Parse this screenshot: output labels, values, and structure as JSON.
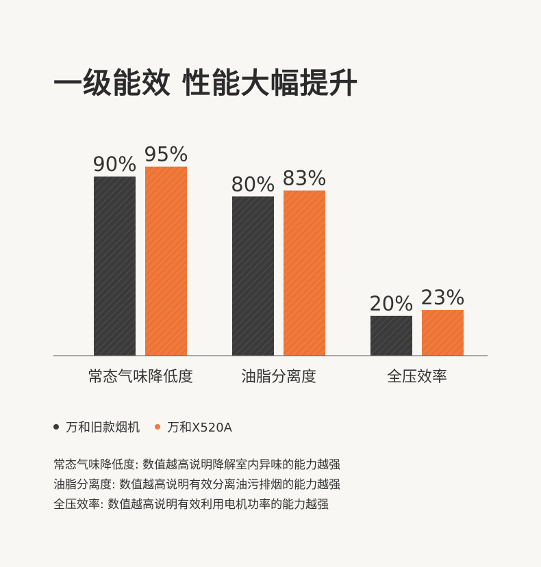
{
  "title": "一级能效 性能大幅提升",
  "colors": {
    "old": "#3a3a3a",
    "new": "#ef7a3c",
    "background": "#f8f7f4",
    "axis": "#555555"
  },
  "chart_data": {
    "type": "bar",
    "categories": [
      "常态气味降低度",
      "油脂分离度",
      "全压效率"
    ],
    "series": [
      {
        "name": "万和旧款烟机",
        "values": [
          90,
          80,
          20
        ],
        "labels": [
          "90%",
          "80%",
          "20%"
        ]
      },
      {
        "name": "万和X520A",
        "values": [
          95,
          83,
          23
        ],
        "labels": [
          "95%",
          "83%",
          "23%"
        ]
      }
    ],
    "ylim": [
      0,
      110
    ],
    "grid": false,
    "legend_position": "bottom-left"
  },
  "legend": [
    {
      "label": "万和旧款烟机"
    },
    {
      "label": "万和X520A"
    }
  ],
  "notes": [
    "常态气味降低度: 数值越高说明降解室内异味的能力越强",
    "油脂分离度: 数值越高说明有效分离油污排烟的能力越强",
    "全压效率: 数值越高说明有效利用电机功率的能力越强"
  ]
}
